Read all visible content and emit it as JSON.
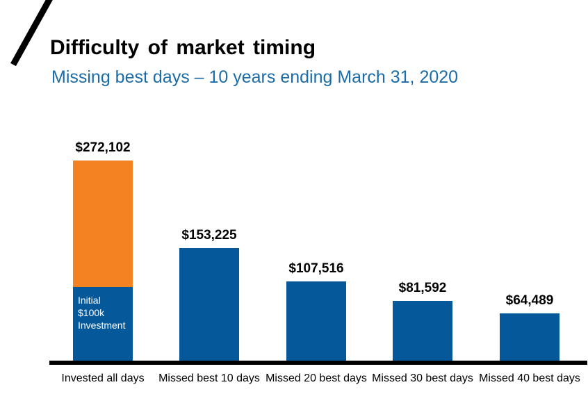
{
  "header": {
    "title": "Difficulty of market timing",
    "subtitle": "Missing best days – 10 years ending March 31, 2020"
  },
  "colors": {
    "bar_blue": "#05599B",
    "bar_orange": "#F58220",
    "subtitle_text": "#1B6CA8",
    "title_text": "#000000",
    "axis_line": "#000000",
    "initial_label_text": "#FFFFFF"
  },
  "chart_data": {
    "type": "bar",
    "title": "Difficulty of market timing",
    "subtitle": "Missing best days – 10 years ending March 31, 2020",
    "categories": [
      "Invested all days",
      "Missed best 10 days",
      "Missed 20 best days",
      "Missed 30 best days",
      "Missed 40 best days"
    ],
    "values": [
      272102,
      153225,
      107516,
      81592,
      64489
    ],
    "value_labels": [
      "$272,102",
      "$153,225",
      "$107,516",
      "$81,592",
      "$64,489"
    ],
    "first_bar_segments": {
      "initial_value": 100000,
      "growth_value": 172102,
      "initial_color": "#05599B",
      "growth_color": "#F58220",
      "label_lines": [
        "Initial",
        "$100k",
        "Investment"
      ]
    },
    "bar_color": "#05599B",
    "ylim": [
      0,
      272102
    ],
    "grid": false,
    "legend": false,
    "annotation": "First bar is stacked: blue bottom segment = initial $100k investment, orange top segment = growth above initial"
  }
}
